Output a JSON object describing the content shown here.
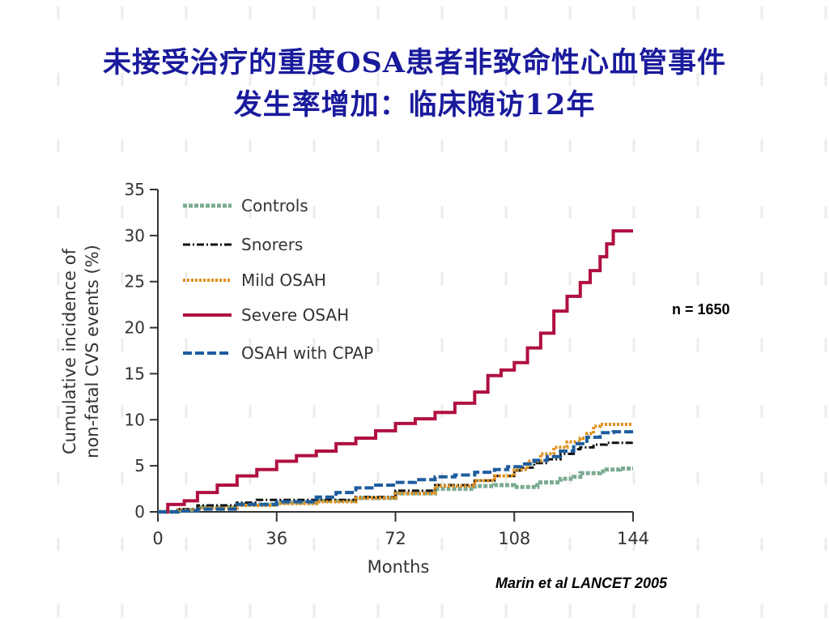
{
  "slide": {
    "title_line1": "未接受治疗的重度OSA患者非致命性心血管事件",
    "title_line2": "发生率增加：临床随访12年",
    "sample_note": "n = 1650",
    "citation": "Marin et al LANCET 2005"
  },
  "chart_data": {
    "type": "line",
    "xlabel": "Months",
    "ylabel_line1": "Cumulative incidence of",
    "ylabel_line2": "non-fatal CVS events (%)",
    "xlim": [
      0,
      144
    ],
    "ylim": [
      0,
      35
    ],
    "xticks": [
      0,
      36,
      72,
      108,
      144
    ],
    "yticks": [
      0,
      5,
      10,
      15,
      20,
      25,
      30,
      35
    ],
    "grid": false,
    "legend_position": "top-left",
    "series": [
      {
        "name": "Controls",
        "color": "#7aab92",
        "dash": "square-dot",
        "x": [
          0,
          6,
          12,
          24,
          36,
          48,
          60,
          72,
          84,
          96,
          102,
          108,
          115,
          122,
          126,
          128,
          134,
          136,
          140,
          144
        ],
        "y": [
          0,
          0.2,
          0.5,
          0.8,
          1.0,
          1.2,
          1.5,
          2.0,
          2.5,
          2.8,
          2.9,
          2.7,
          3.2,
          3.6,
          3.8,
          4.2,
          4.4,
          4.6,
          4.7,
          4.7
        ]
      },
      {
        "name": "Snorers",
        "color": "#111111",
        "dash": "dash-dot",
        "x": [
          0,
          6,
          12,
          24,
          30,
          36,
          48,
          60,
          72,
          84,
          96,
          102,
          108,
          110,
          114,
          118,
          122,
          126,
          128,
          132,
          136,
          140,
          144
        ],
        "y": [
          0,
          0.3,
          0.7,
          1.0,
          1.3,
          1.3,
          1.3,
          1.6,
          2.3,
          2.9,
          3.4,
          3.9,
          4.5,
          4.8,
          5.3,
          5.7,
          6.3,
          6.8,
          7.0,
          7.3,
          7.5,
          7.5,
          7.5
        ]
      },
      {
        "name": "Mild OSAH",
        "color": "#e2901e",
        "dash": "dotted",
        "x": [
          0,
          6,
          12,
          24,
          36,
          48,
          60,
          72,
          84,
          96,
          102,
          108,
          112,
          116,
          120,
          124,
          128,
          130,
          132,
          134,
          138,
          144
        ],
        "y": [
          0,
          0.2,
          0.4,
          0.7,
          0.9,
          1.1,
          1.5,
          2.0,
          2.8,
          3.4,
          3.9,
          4.6,
          5.5,
          6.3,
          7.0,
          7.6,
          8.0,
          8.5,
          9.3,
          9.5,
          9.5,
          9.5
        ]
      },
      {
        "name": "Severe OSAH",
        "color": "#b01040",
        "dash": "solid",
        "x": [
          0,
          3,
          8,
          12,
          18,
          24,
          30,
          36,
          42,
          48,
          54,
          60,
          66,
          72,
          78,
          84,
          90,
          96,
          100,
          104,
          108,
          112,
          116,
          120,
          124,
          128,
          131,
          134,
          136,
          138,
          144
        ],
        "y": [
          0,
          0.8,
          1.2,
          2.1,
          2.9,
          3.9,
          4.6,
          5.5,
          6.1,
          6.6,
          7.4,
          8.0,
          8.8,
          9.6,
          10.1,
          10.8,
          11.8,
          13.0,
          14.8,
          15.4,
          16.2,
          17.8,
          19.4,
          21.8,
          23.4,
          24.9,
          26.2,
          27.7,
          29.1,
          30.5,
          30.5
        ]
      },
      {
        "name": "OSAH with CPAP",
        "color": "#1e5d9e",
        "dash": "dashed",
        "x": [
          0,
          6,
          12,
          24,
          36,
          48,
          54,
          60,
          66,
          72,
          78,
          84,
          90,
          96,
          102,
          106,
          110,
          114,
          118,
          122,
          126,
          130,
          134,
          138,
          144
        ],
        "y": [
          0,
          0.1,
          0.3,
          0.8,
          1.1,
          1.6,
          2.1,
          2.6,
          2.9,
          3.2,
          3.5,
          3.8,
          4.0,
          4.3,
          4.6,
          4.9,
          5.2,
          5.6,
          6.0,
          6.6,
          7.4,
          8.1,
          8.6,
          8.7,
          8.7
        ]
      }
    ]
  }
}
